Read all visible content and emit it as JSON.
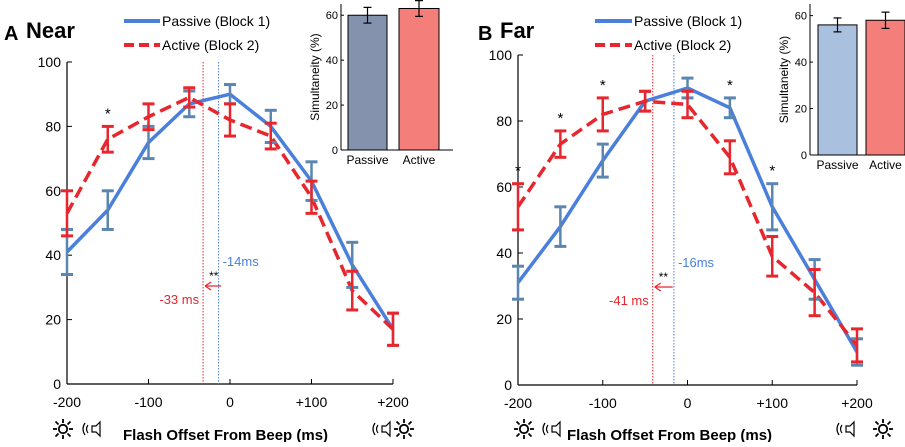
{
  "colors": {
    "passive": "#4a7fdc",
    "active": "#e8262d",
    "passive_err": "#5a86b0",
    "active_err": "#e8262d",
    "inset_passive": [
      "#8592ae",
      "#a9c0df"
    ],
    "inset_active": [
      "#f47f7a",
      "#f47f7a"
    ],
    "axis": "#000000"
  },
  "icons": [
    "flash-icon",
    "speaker-icon"
  ],
  "chart_data": [
    {
      "type": "line",
      "panel_letter": "A",
      "panel_title": "Near",
      "xlabel": "Flash Offset From Beep (ms)",
      "ylabel": "",
      "x": [
        -200,
        -150,
        -100,
        -50,
        0,
        50,
        100,
        150,
        200
      ],
      "xticks": [
        -200,
        -100,
        0,
        100,
        200
      ],
      "xtick_labels": [
        "-200",
        "-100",
        "0",
        "+100",
        "+200"
      ],
      "xlim": [
        -200,
        200
      ],
      "yticks": [
        0,
        20,
        40,
        60,
        80,
        100
      ],
      "ylim": [
        0,
        100
      ],
      "legend_position": "top",
      "series": [
        {
          "name": "Passive (Block 1)",
          "style": "solid",
          "values": [
            41,
            54,
            75,
            87,
            90,
            80,
            63,
            37,
            17
          ],
          "errors": [
            7,
            6,
            5,
            4,
            3,
            5,
            6,
            7,
            5
          ]
        },
        {
          "name": "Active (Block 2)",
          "style": "dashed",
          "values": [
            53,
            76,
            83,
            89,
            82,
            77,
            58,
            29,
            17
          ],
          "errors": [
            7,
            4,
            4,
            3,
            5,
            4,
            5,
            6,
            5
          ]
        }
      ],
      "significance": [
        {
          "x": -150,
          "label": "*"
        }
      ],
      "pss": [
        {
          "series": "Passive (Block 1)",
          "x": -14,
          "label": "-14ms"
        },
        {
          "series": "Active (Block 2)",
          "x": -33,
          "label": "-33 ms"
        }
      ],
      "pss_diff_label": "**",
      "inset": {
        "type": "bar",
        "ylabel": "Simultaneity (%)",
        "categories": [
          "Passive",
          "Active"
        ],
        "values": [
          60,
          63
        ],
        "errors": [
          3.5,
          3.5
        ],
        "yticks": [
          0,
          20,
          40,
          60
        ],
        "ylim": [
          0,
          65
        ]
      }
    },
    {
      "type": "line",
      "panel_letter": "B",
      "panel_title": "Far",
      "xlabel": "Flash Offset From Beep (ms)",
      "ylabel": "",
      "x": [
        -200,
        -150,
        -100,
        -50,
        0,
        50,
        100,
        150,
        200
      ],
      "xticks": [
        -200,
        -100,
        0,
        100,
        200
      ],
      "xtick_labels": [
        "-200",
        "-100",
        "0",
        "+100",
        "+200"
      ],
      "xlim": [
        -200,
        200
      ],
      "yticks": [
        0,
        20,
        40,
        60,
        80,
        100
      ],
      "ylim": [
        0,
        100
      ],
      "legend_position": "top",
      "series": [
        {
          "name": "Passive (Block 1)",
          "style": "solid",
          "values": [
            31,
            48,
            68,
            86,
            90,
            84,
            54,
            32,
            10
          ],
          "errors": [
            5,
            6,
            5,
            3,
            3,
            3,
            7,
            6,
            4
          ]
        },
        {
          "name": "Active (Block 2)",
          "style": "dashed",
          "values": [
            54,
            73,
            82,
            86,
            85,
            69,
            39,
            28,
            12
          ],
          "errors": [
            7,
            4,
            5,
            3,
            4,
            5,
            6,
            7,
            5
          ]
        }
      ],
      "significance": [
        {
          "x": -200,
          "label": "*"
        },
        {
          "x": -150,
          "label": "*"
        },
        {
          "x": -100,
          "label": "*"
        },
        {
          "x": 50,
          "label": "*"
        },
        {
          "x": 100,
          "label": "*"
        }
      ],
      "pss": [
        {
          "series": "Passive (Block 1)",
          "x": -16,
          "label": "-16ms"
        },
        {
          "series": "Active (Block 2)",
          "x": -41,
          "label": "-41 ms"
        }
      ],
      "pss_diff_label": "**",
      "inset": {
        "type": "bar",
        "ylabel": "Simultaneity (%)",
        "categories": [
          "Passive",
          "Active"
        ],
        "values": [
          56,
          58
        ],
        "errors": [
          3,
          3.5
        ],
        "yticks": [
          0,
          20,
          40,
          60
        ],
        "ylim": [
          0,
          65
        ]
      }
    }
  ]
}
